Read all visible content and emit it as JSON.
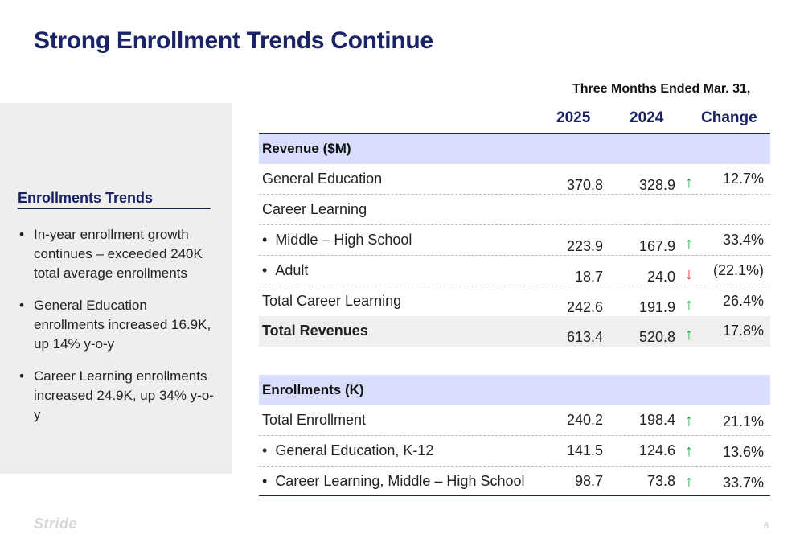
{
  "title": "Strong Enrollment Trends Continue",
  "sidebar": {
    "heading": "Enrollments Trends",
    "bullets": [
      "In-year enrollment growth continues – exceeded 240K total average enrollments",
      "General Education enrollments increased 16.9K, up 14% y-o-y",
      "Career Learning enrollments increased 24.9K, up 34% y-o-y"
    ]
  },
  "table": {
    "period": "Three Months Ended Mar. 31,",
    "columns": [
      "2025",
      "2024",
      "Change"
    ],
    "revenue_section": "Revenue ($M)",
    "revenue_rows": [
      {
        "label": "General Education",
        "v2025": "370.8",
        "v2024": "328.9",
        "trend": "up",
        "change": "12.7%"
      },
      {
        "label": "Career Learning",
        "v2025": "",
        "v2024": "",
        "trend": "",
        "change": ""
      },
      {
        "label": "Middle – High School",
        "v2025": "223.9",
        "v2024": "167.9",
        "trend": "up",
        "change": "33.4%"
      },
      {
        "label": "Adult",
        "v2025": "18.7",
        "v2024": "24.0",
        "trend": "down",
        "change": "(22.1%)"
      },
      {
        "label": "Total Career Learning",
        "v2025": "242.6",
        "v2024": "191.9",
        "trend": "up",
        "change": "26.4%"
      },
      {
        "label": "Total Revenues",
        "v2025": "613.4",
        "v2024": "520.8",
        "trend": "up",
        "change": "17.8%"
      }
    ],
    "enrollment_section": "Enrollments (K)",
    "enrollment_rows": [
      {
        "label": "Total Enrollment",
        "v2025": "240.2",
        "v2024": "198.4",
        "trend": "up",
        "change": "21.1%"
      },
      {
        "label": "General Education, K-12",
        "v2025": "141.5",
        "v2024": "124.6",
        "trend": "up",
        "change": "13.6%"
      },
      {
        "label": "Career Learning, Middle – High School",
        "v2025": "98.7",
        "v2024": "73.8",
        "trend": "up",
        "change": "33.7%"
      }
    ],
    "arrow_glyphs": {
      "up": "↑",
      "down": "↓"
    }
  },
  "footer": {
    "logo": "Stride",
    "page_number": "6"
  },
  "colors": {
    "title": "#1a2366",
    "section_band": "#d9ddfc",
    "up_arrow": "#21a84a",
    "down_arrow": "#e3262b"
  }
}
